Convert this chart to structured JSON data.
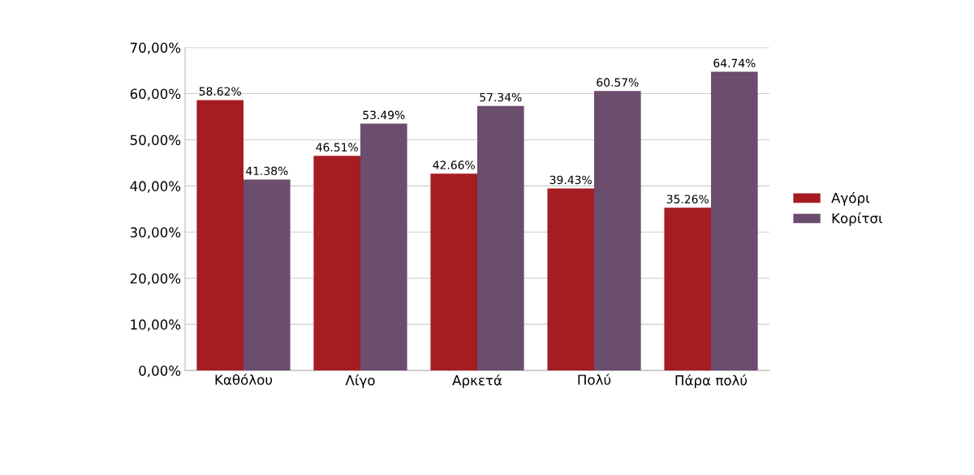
{
  "chart_data": {
    "type": "bar",
    "categories": [
      "Καθόλου",
      "Λίγο",
      "Αρκετά",
      "Πολύ",
      "Πάρα πολύ"
    ],
    "series": [
      {
        "name": "Αγόρι",
        "color": "#a51d22",
        "values": [
          58.62,
          46.51,
          42.66,
          39.43,
          35.26
        ],
        "value_labels": [
          "58.62%",
          "46.51%",
          "42.66%",
          "39.43%",
          "35.26%"
        ]
      },
      {
        "name": "Κορίτσι",
        "color": "#6b4d6e",
        "values": [
          41.38,
          53.49,
          57.34,
          60.57,
          64.74
        ],
        "value_labels": [
          "41.38%",
          "53.49%",
          "57.34%",
          "60.57%",
          "64.74%"
        ]
      }
    ],
    "ylim": [
      0,
      70
    ],
    "yticks": [
      {
        "value": 0,
        "label": "0,00%"
      },
      {
        "value": 10,
        "label": "10,00%"
      },
      {
        "value": 20,
        "label": "20,00%"
      },
      {
        "value": 30,
        "label": "30,00%"
      },
      {
        "value": 40,
        "label": "40,00%"
      },
      {
        "value": 50,
        "label": "50,00%"
      },
      {
        "value": 60,
        "label": "60,00%"
      },
      {
        "value": 70,
        "label": "70,00%"
      }
    ],
    "grid": "y",
    "legend": "right"
  }
}
